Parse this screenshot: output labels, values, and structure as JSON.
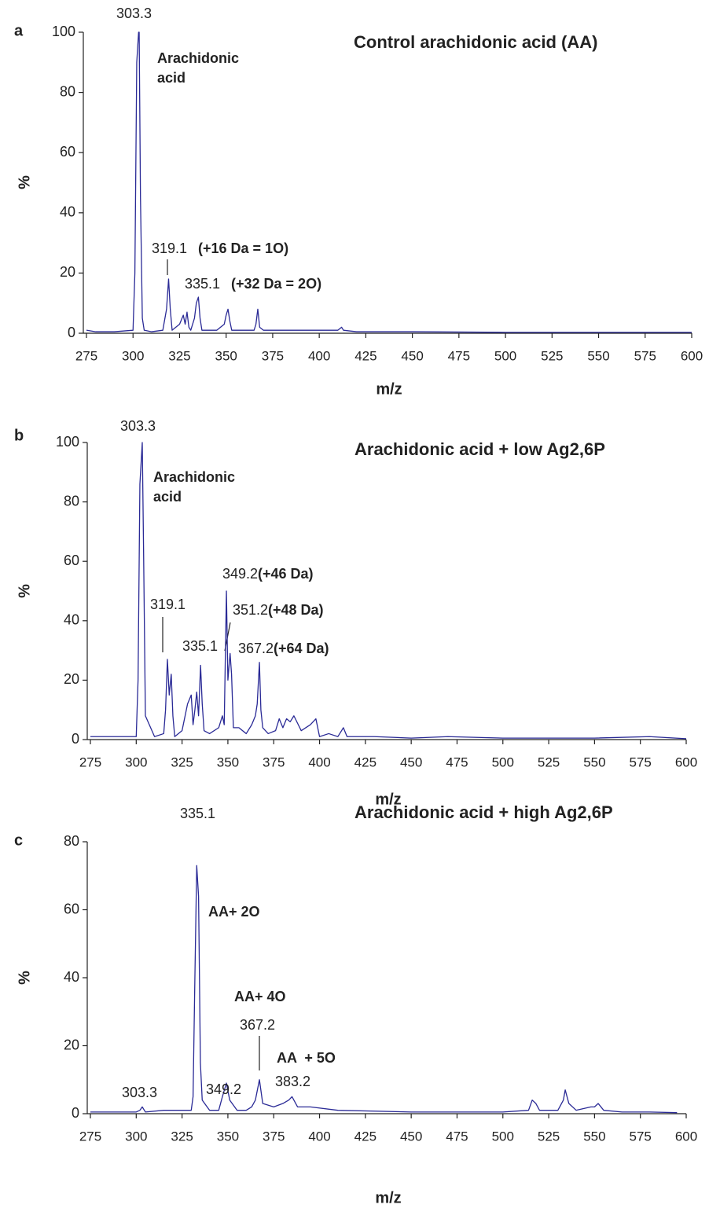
{
  "chart_data": [
    {
      "type": "line",
      "panel_label": "a",
      "title": "Control arachidonic acid (AA)",
      "xlabel": "m/z",
      "ylabel": "%",
      "xlim": [
        275,
        600
      ],
      "xticks": [
        275,
        300,
        325,
        350,
        375,
        400,
        425,
        450,
        475,
        500,
        525,
        550,
        575,
        600
      ],
      "ylim": [
        0,
        100
      ],
      "yticks": [
        0,
        20,
        40,
        60,
        80,
        100
      ],
      "series": [
        {
          "color": "#2a2a96",
          "x": [
            275,
            280,
            290,
            300,
            301,
            302,
            303,
            303.3,
            304,
            305,
            306,
            310,
            316,
            318,
            319.1,
            320,
            321,
            325,
            327,
            328,
            329,
            330,
            331,
            333,
            334,
            335.1,
            336,
            337,
            340,
            345,
            349,
            350,
            351,
            352,
            353,
            360,
            365,
            366,
            367,
            368,
            370,
            380,
            390,
            400,
            410,
            412,
            413,
            420,
            450,
            500,
            550,
            600
          ],
          "values": [
            1,
            0.5,
            0.5,
            1,
            20,
            90,
            100,
            100,
            45,
            5,
            1,
            0.5,
            1,
            8,
            18,
            8,
            1,
            3,
            6,
            3,
            7,
            2,
            1,
            5,
            10,
            12,
            5,
            1,
            1,
            1,
            3,
            6,
            8,
            4,
            1,
            1,
            1,
            3,
            8,
            2,
            1,
            1,
            1,
            1,
            1,
            2,
            1,
            0.5,
            0.5,
            0.3,
            0.3,
            0.3
          ]
        }
      ],
      "annotations": [
        "303.3",
        "Arachidonic",
        "acid",
        "319.1",
        "(+16 Da = 1O)",
        "335.1",
        "(+32 Da = 2O)"
      ]
    },
    {
      "type": "line",
      "panel_label": "b",
      "title": "Arachidonic acid + low Ag2,6P",
      "xlabel": "m/z",
      "ylabel": "%",
      "xlim": [
        275,
        600
      ],
      "xticks": [
        275,
        300,
        325,
        350,
        375,
        400,
        425,
        450,
        475,
        500,
        525,
        550,
        575,
        600
      ],
      "ylim": [
        0,
        100
      ],
      "yticks": [
        0,
        20,
        40,
        60,
        80,
        100
      ],
      "series": [
        {
          "color": "#2a2a96",
          "x": [
            275,
            285,
            295,
            300,
            301,
            302,
            303.3,
            304,
            305,
            310,
            315,
            316,
            317,
            318,
            319.1,
            320,
            321,
            325,
            328,
            330,
            331,
            332,
            333,
            334,
            335.1,
            336,
            337,
            340,
            345,
            347,
            348,
            349.2,
            350,
            351.2,
            352,
            353,
            356,
            360,
            363,
            365,
            366,
            367.2,
            368,
            369,
            372,
            376,
            378,
            380,
            382,
            384,
            386,
            390,
            395,
            398,
            400,
            405,
            410,
            412,
            413,
            415,
            420,
            430,
            450,
            470,
            500,
            550,
            580,
            600
          ],
          "values": [
            1,
            1,
            1,
            1,
            20,
            86,
            100,
            64,
            8,
            1,
            2,
            10,
            27,
            15,
            22,
            8,
            1,
            3,
            12,
            15,
            5,
            10,
            16,
            8,
            25,
            12,
            3,
            2,
            4,
            8,
            5,
            50,
            20,
            29,
            22,
            4,
            4,
            2,
            5,
            8,
            12,
            26,
            10,
            4,
            2,
            3,
            7,
            4,
            7,
            6,
            8,
            3,
            5,
            7,
            1,
            2,
            1,
            3,
            4,
            1,
            1,
            1,
            0.5,
            1,
            0.5,
            0.5,
            1,
            0.3
          ]
        }
      ],
      "annotations": [
        "303.3",
        "Arachidonic",
        "acid",
        "349.2",
        "(+46 Da)",
        "319.1",
        "351.2",
        "(+48 Da)",
        "335.1",
        "367.2",
        "(+64 Da)"
      ]
    },
    {
      "type": "line",
      "panel_label": "c",
      "title": "Arachidonic acid + high Ag2,6P",
      "xlabel": "m/z",
      "ylabel": "%",
      "xlim": [
        275,
        600
      ],
      "xticks": [
        275,
        300,
        325,
        350,
        375,
        400,
        425,
        450,
        475,
        500,
        525,
        550,
        575,
        600
      ],
      "ylim": [
        0,
        80
      ],
      "yticks": [
        0,
        20,
        40,
        60,
        80
      ],
      "series": [
        {
          "color": "#2a2a96",
          "x": [
            275,
            290,
            300,
            302,
            303.3,
            305,
            315,
            325,
            330,
            331,
            332,
            333,
            334,
            335,
            336,
            340,
            345,
            347,
            349.2,
            351,
            355,
            360,
            363,
            365,
            367.2,
            369,
            375,
            380,
            383.2,
            385,
            388,
            395,
            410,
            450,
            500,
            514,
            516,
            518,
            520,
            530,
            533,
            534,
            536,
            540,
            548,
            550,
            552,
            555,
            565,
            580,
            595
          ],
          "values": [
            0.5,
            0.5,
            0.5,
            1,
            2,
            0.5,
            1,
            1,
            1,
            5,
            40,
            73,
            64,
            15,
            4,
            1,
            1,
            5,
            9,
            4,
            1,
            1,
            2,
            4,
            10,
            3,
            2,
            3,
            4,
            5,
            2,
            2,
            1,
            0.5,
            0.5,
            1,
            4,
            3,
            1,
            1,
            4,
            7,
            3,
            1,
            2,
            2,
            3,
            1,
            0.5,
            0.5,
            0.3
          ]
        }
      ],
      "annotations": [
        "335.1",
        "AA+ 2O",
        "AA+ 4O",
        "367.2",
        "AA  + 5O",
        "349.2",
        "383.2",
        "303.3"
      ]
    }
  ]
}
